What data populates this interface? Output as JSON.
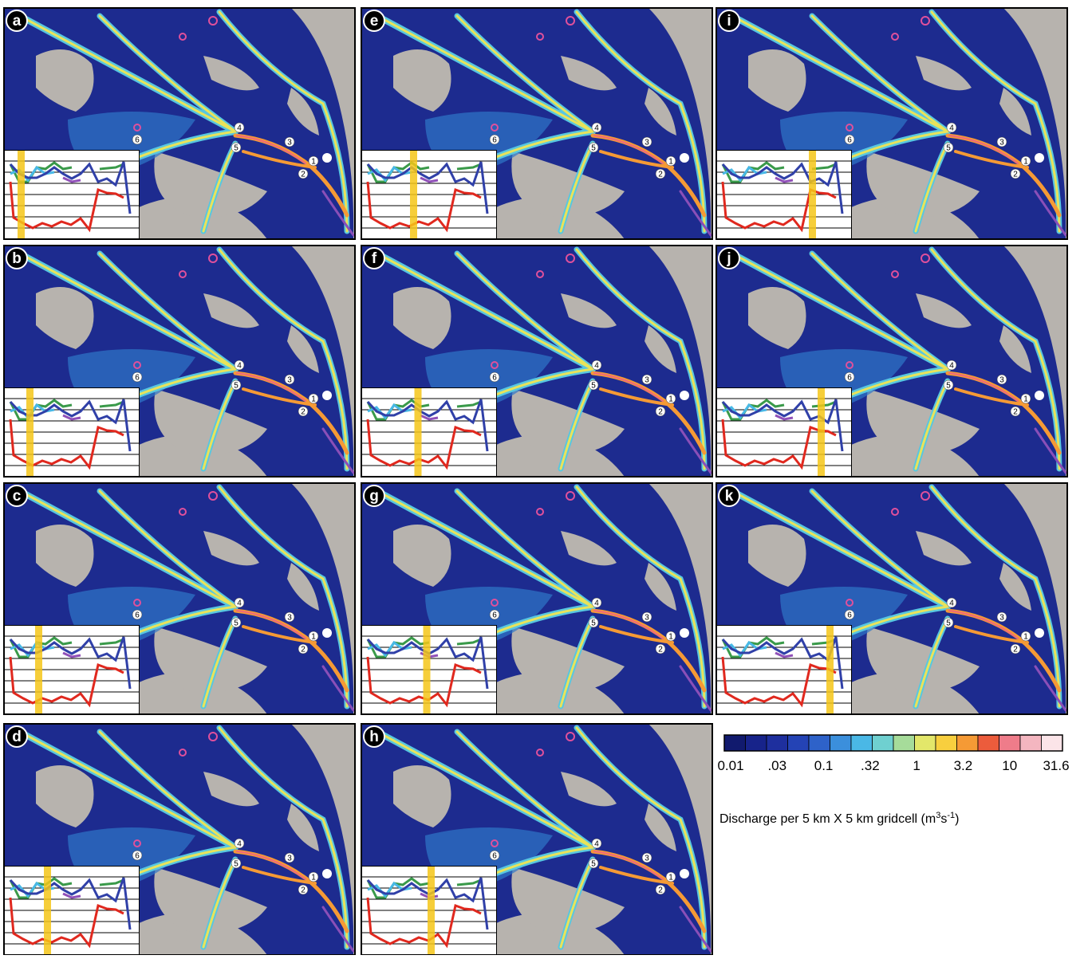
{
  "panels": [
    {
      "letter": "a",
      "highlight_step": 1
    },
    {
      "letter": "b",
      "highlight_step": 2
    },
    {
      "letter": "c",
      "highlight_step": 3
    },
    {
      "letter": "d",
      "highlight_step": 4
    },
    {
      "letter": "e",
      "highlight_step": 5
    },
    {
      "letter": "f",
      "highlight_step": 5.5
    },
    {
      "letter": "g",
      "highlight_step": 6.5
    },
    {
      "letter": "h",
      "highlight_step": 7
    },
    {
      "letter": "i",
      "highlight_step": 10
    },
    {
      "letter": "j",
      "highlight_step": 11
    },
    {
      "letter": "k",
      "highlight_step": 12
    }
  ],
  "sites": [
    "1",
    "2",
    "3",
    "4",
    "5",
    "6"
  ],
  "colorbar": {
    "colors": [
      "#111a6e",
      "#17238a",
      "#1e2f9e",
      "#2443b5",
      "#2e62c9",
      "#3b8fdc",
      "#4ab8e6",
      "#6fd0d0",
      "#a6dc9a",
      "#e3e76a",
      "#f8cf3e",
      "#f59a35",
      "#ec5c3c",
      "#ef7c8a",
      "#f4b6c0",
      "#fbe4e8"
    ],
    "tick_labels": [
      "0.01",
      ".03",
      "0.1",
      ".32",
      "1",
      "3.2",
      "10",
      "31.6"
    ],
    "caption": [
      "Discharge per 5 km X 5 km gridcell (m",
      "3",
      "s",
      "-1",
      ")"
    ]
  }
}
